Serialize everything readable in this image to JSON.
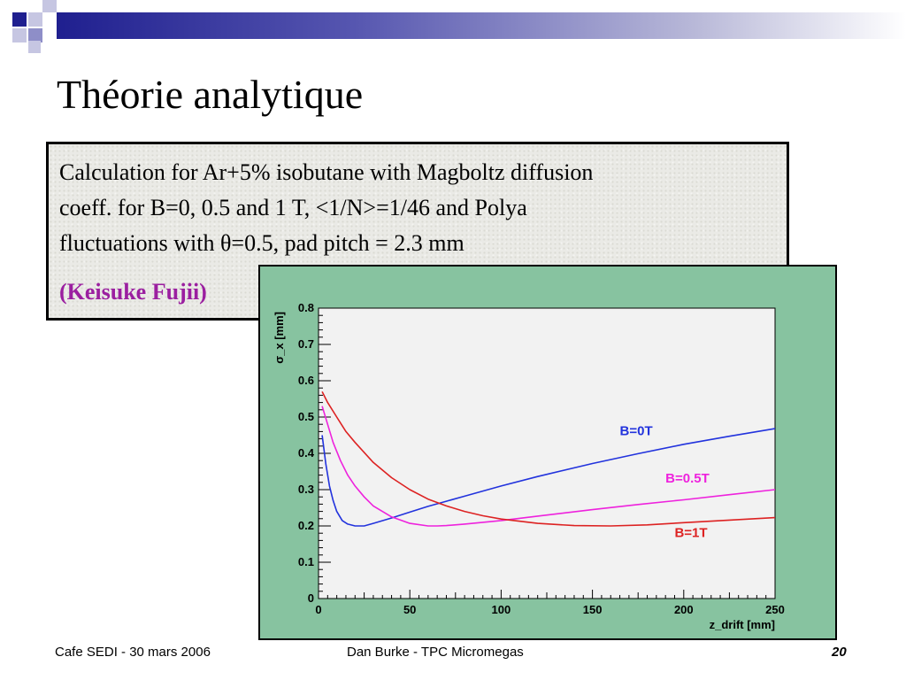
{
  "slide": {
    "title": "Théorie analytique",
    "text_lines": [
      "Calculation for Ar+5% isobutane with Magboltz diffusion",
      "coeff. for B=0, 0.5 and 1 T, <1/N>=1/46 and Polya",
      "fluctuations with θ=0.5, pad pitch = 2.3 mm"
    ],
    "author": "(Keisuke Fujii)"
  },
  "footer": {
    "left": "Cafe SEDI - 30 mars 2006",
    "center": "Dan Burke - TPC Micromegas",
    "page": "20"
  },
  "colors": {
    "header_bar": "#1f1f8f",
    "chart_panel": "#87c3a0",
    "plot_area": "#f2f2f2",
    "author": "#9b1fa0"
  },
  "chart_data": {
    "type": "line",
    "xlabel": "z_drift [mm]",
    "ylabel": "σ_x [mm]",
    "xlim": [
      0,
      250
    ],
    "ylim": [
      0,
      0.8
    ],
    "x_ticks": [
      "0",
      "50",
      "100",
      "150",
      "200",
      "250"
    ],
    "y_ticks": [
      "0",
      "0.1",
      "0.2",
      "0.3",
      "0.4",
      "0.5",
      "0.6",
      "0.7",
      "0.8"
    ],
    "grid": false,
    "series": [
      {
        "name": "B=0T",
        "color": "#2233dd",
        "x": [
          2,
          4,
          6,
          8,
          10,
          13,
          16,
          20,
          25,
          30,
          40,
          50,
          60,
          70,
          80,
          100,
          120,
          150,
          175,
          200,
          225,
          250
        ],
        "y": [
          0.45,
          0.37,
          0.31,
          0.27,
          0.24,
          0.215,
          0.205,
          0.2,
          0.2,
          0.207,
          0.222,
          0.238,
          0.254,
          0.268,
          0.282,
          0.31,
          0.336,
          0.372,
          0.399,
          0.425,
          0.447,
          0.468
        ]
      },
      {
        "name": "B=0.5T",
        "color": "#ee22dd",
        "x": [
          2,
          5,
          8,
          12,
          16,
          20,
          25,
          30,
          40,
          50,
          60,
          65,
          70,
          80,
          100,
          120,
          150,
          175,
          200,
          225,
          250
        ],
        "y": [
          0.53,
          0.48,
          0.43,
          0.38,
          0.34,
          0.31,
          0.28,
          0.255,
          0.225,
          0.207,
          0.2,
          0.2,
          0.201,
          0.205,
          0.215,
          0.227,
          0.245,
          0.259,
          0.272,
          0.286,
          0.3
        ]
      },
      {
        "name": "B=1T",
        "color": "#dd2222",
        "x": [
          2,
          5,
          10,
          15,
          20,
          30,
          40,
          50,
          60,
          70,
          80,
          90,
          100,
          120,
          140,
          160,
          180,
          200,
          225,
          250
        ],
        "y": [
          0.57,
          0.54,
          0.5,
          0.46,
          0.43,
          0.375,
          0.333,
          0.3,
          0.274,
          0.255,
          0.24,
          0.228,
          0.219,
          0.207,
          0.201,
          0.2,
          0.203,
          0.209,
          0.216,
          0.223
        ]
      }
    ]
  }
}
